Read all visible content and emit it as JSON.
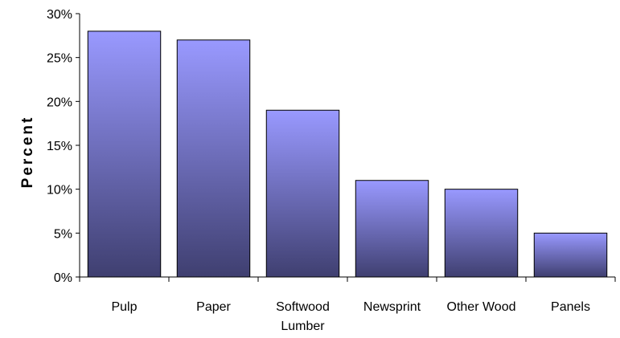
{
  "chart_data": {
    "type": "bar",
    "categories": [
      [
        "Pulp"
      ],
      [
        "Paper"
      ],
      [
        "Softwood",
        "Lumber"
      ],
      [
        "Newsprint"
      ],
      [
        "Other Wood"
      ],
      [
        "Panels"
      ]
    ],
    "values": [
      28,
      27,
      19,
      11,
      10,
      5
    ],
    "title": "",
    "xlabel": "",
    "ylabel": "Percent",
    "ylim": [
      0,
      30
    ],
    "yticks": [
      0,
      5,
      10,
      15,
      20,
      25,
      30
    ],
    "ytick_labels": [
      "0%",
      "5%",
      "10%",
      "15%",
      "20%",
      "25%",
      "30%"
    ],
    "grid": false,
    "legend": "none",
    "colors": {
      "bar_top": "#9999ff",
      "bar_bottom": "#3f3f70",
      "bar_outline": "#000000",
      "axis": "#000000"
    }
  }
}
